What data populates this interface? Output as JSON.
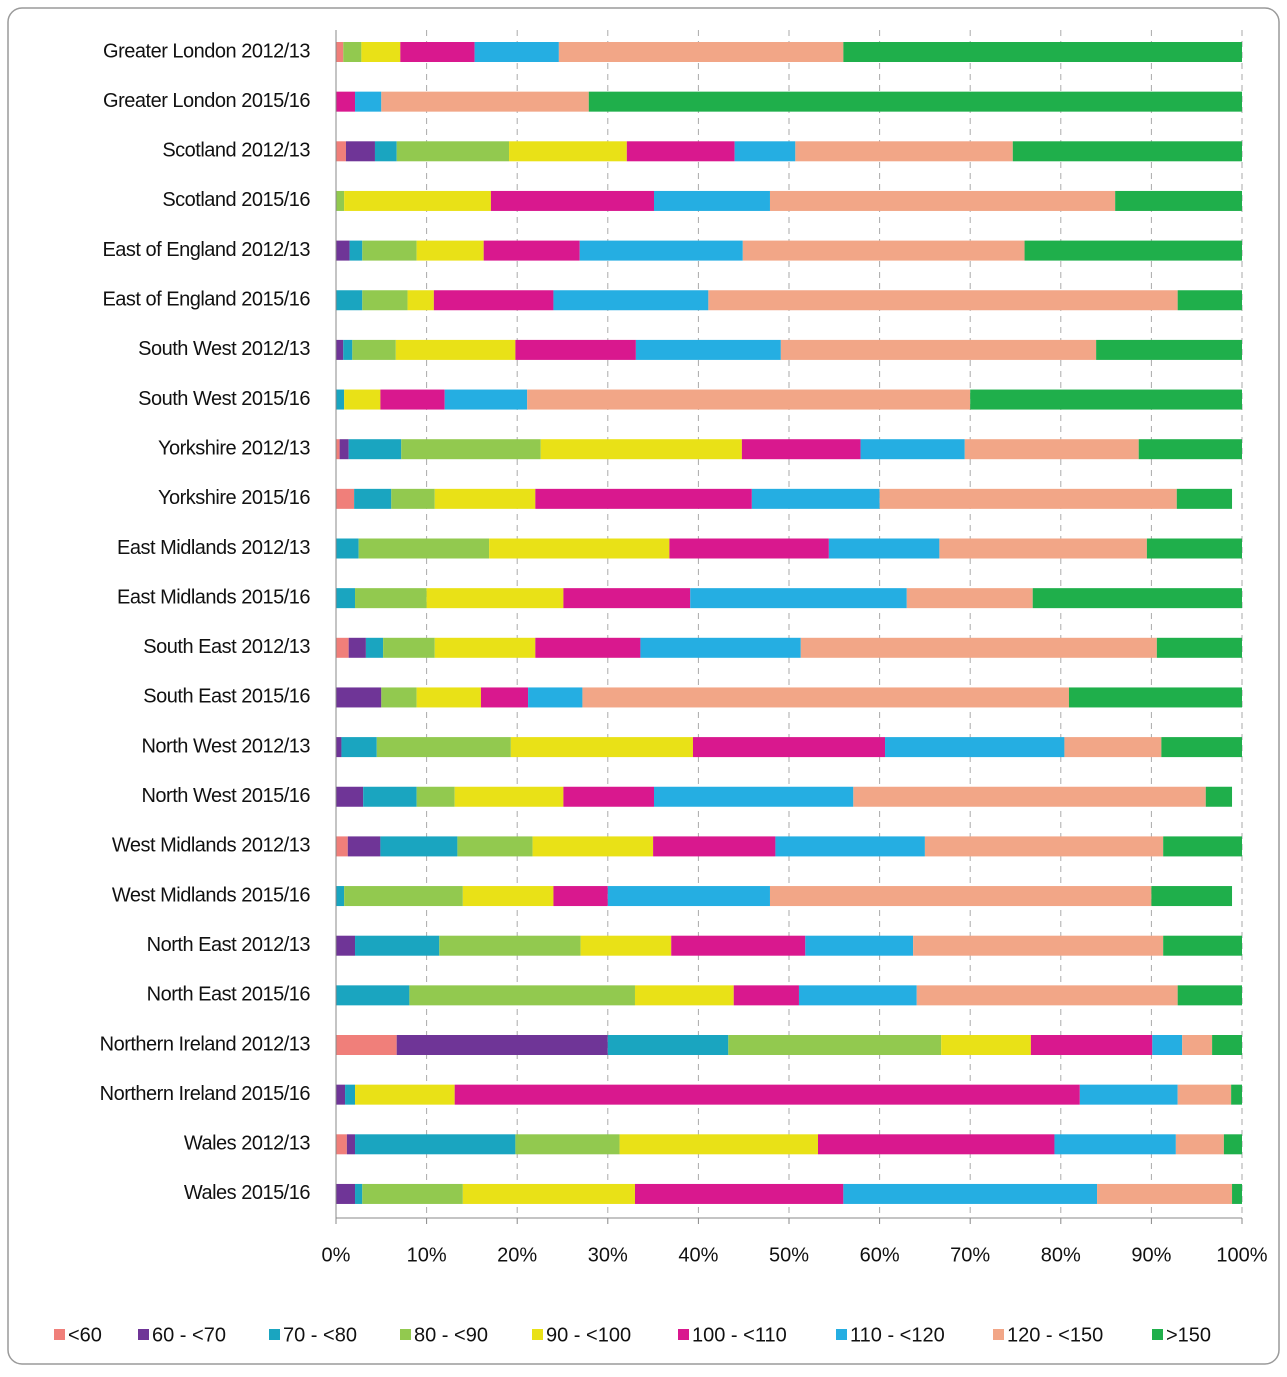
{
  "chart_data": {
    "type": "stacked_bar_horizontal",
    "categories": [
      "Greater London 2012/13",
      "Greater London 2015/16",
      "Scotland 2012/13",
      "Scotland 2015/16",
      "East of England 2012/13",
      "East of England 2015/16",
      "South West 2012/13",
      "South West 2015/16",
      "Yorkshire 2012/13",
      "Yorkshire 2015/16",
      "East Midlands 2012/13",
      "East Midlands 2015/16",
      "South East 2012/13",
      "South East 2015/16",
      "North West 2012/13",
      "North West 2015/16",
      "West Midlands 2012/13",
      "West Midlands 2015/16",
      "North East 2012/13",
      "North East 2015/16",
      "Northern Ireland 2012/13",
      "Northern Ireland 2015/16",
      "Wales 2012/13",
      "Wales 2015/16"
    ],
    "series": [
      {
        "name": "<60",
        "color": "#f07f7a",
        "values": [
          0.8,
          0,
          1.1,
          0,
          0,
          0,
          0,
          0,
          0.4,
          2,
          0,
          0,
          1.4,
          0,
          0,
          0,
          1.3,
          0,
          0,
          0,
          6.7,
          0,
          1.2,
          0
        ]
      },
      {
        "name": "60 - <70",
        "color": "#6f3597",
        "values": [
          0,
          0,
          3.2,
          0,
          1.5,
          0,
          0.8,
          0,
          1,
          0,
          0,
          0,
          1.9,
          5,
          0.6,
          3,
          3.6,
          0,
          2.1,
          0,
          23.3,
          1,
          0.9,
          2.1
        ]
      },
      {
        "name": "70 - <80",
        "color": "#1aa5c0",
        "values": [
          0,
          0,
          2.4,
          0,
          1.4,
          2.9,
          1,
          0.9,
          5.8,
          4.1,
          2.5,
          2.1,
          1.9,
          0,
          3.9,
          5.9,
          8.5,
          0.9,
          9.3,
          8.1,
          13.3,
          1.1,
          17.7,
          0.8
        ]
      },
      {
        "name": "80 - <90",
        "color": "#92c94f",
        "values": [
          2,
          0,
          12.4,
          0.9,
          6,
          5,
          4.8,
          0,
          15.4,
          4.8,
          14.4,
          7.9,
          5.7,
          3.9,
          14.8,
          4.2,
          8.3,
          13.1,
          15.6,
          24.9,
          23.5,
          0,
          11.5,
          11.1
        ]
      },
      {
        "name": "90 - <100",
        "color": "#e9e117",
        "values": [
          4.3,
          0,
          13,
          16.2,
          7.4,
          2.9,
          13.2,
          4,
          22.2,
          11.1,
          19.9,
          15.1,
          11.1,
          7.1,
          20.1,
          12,
          13.3,
          10,
          10,
          10.9,
          9.9,
          11,
          21.9,
          19
        ]
      },
      {
        "name": "100 - <110",
        "color": "#d9188e",
        "values": [
          8.2,
          2.1,
          11.9,
          18,
          10.6,
          13.2,
          13.3,
          7.1,
          13.1,
          23.9,
          17.6,
          14,
          11.6,
          5.2,
          21.2,
          10,
          13.5,
          6,
          14.8,
          7.2,
          13.4,
          69,
          26.1,
          23
        ]
      },
      {
        "name": "110 - <120",
        "color": "#25aee2",
        "values": [
          9.3,
          2.9,
          6.7,
          12.8,
          18,
          17.1,
          16,
          9.1,
          11.5,
          14.1,
          12.2,
          23.9,
          17.7,
          6,
          19.8,
          22,
          16.5,
          17.9,
          11.9,
          13,
          3.3,
          10.8,
          13.4,
          28
        ]
      },
      {
        "name": "120 - <150",
        "color": "#f2a687",
        "values": [
          31.4,
          22.9,
          24,
          38.1,
          31.1,
          51.8,
          34.8,
          48.9,
          19.2,
          32.8,
          22.9,
          13.9,
          39.3,
          53.7,
          10.7,
          38.9,
          26.3,
          42.1,
          27.6,
          28.8,
          3.3,
          5.9,
          5.3,
          14.9
        ]
      },
      {
        "name": ">150",
        "color": "#1faf4b",
        "values": [
          44,
          72.1,
          25.3,
          14,
          24,
          7.1,
          16.1,
          30,
          11.4,
          6.1,
          10.5,
          23.1,
          9.4,
          19.1,
          8.9,
          2.9,
          8.7,
          8.9,
          8.7,
          7.1,
          3.3,
          1.2,
          2,
          1.1
        ]
      }
    ],
    "xlim": [
      0,
      100
    ],
    "xticks": [
      {
        "value": 0,
        "label": "0%"
      },
      {
        "value": 10,
        "label": "10%"
      },
      {
        "value": 20,
        "label": "20%"
      },
      {
        "value": 30,
        "label": "30%"
      },
      {
        "value": 40,
        "label": "40%"
      },
      {
        "value": 50,
        "label": "50%"
      },
      {
        "value": 60,
        "label": "60%"
      },
      {
        "value": 70,
        "label": "70%"
      },
      {
        "value": 80,
        "label": "80%"
      },
      {
        "value": 90,
        "label": "90%"
      },
      {
        "value": 100,
        "label": "100%"
      }
    ],
    "grid": true,
    "legend": "bottom"
  }
}
